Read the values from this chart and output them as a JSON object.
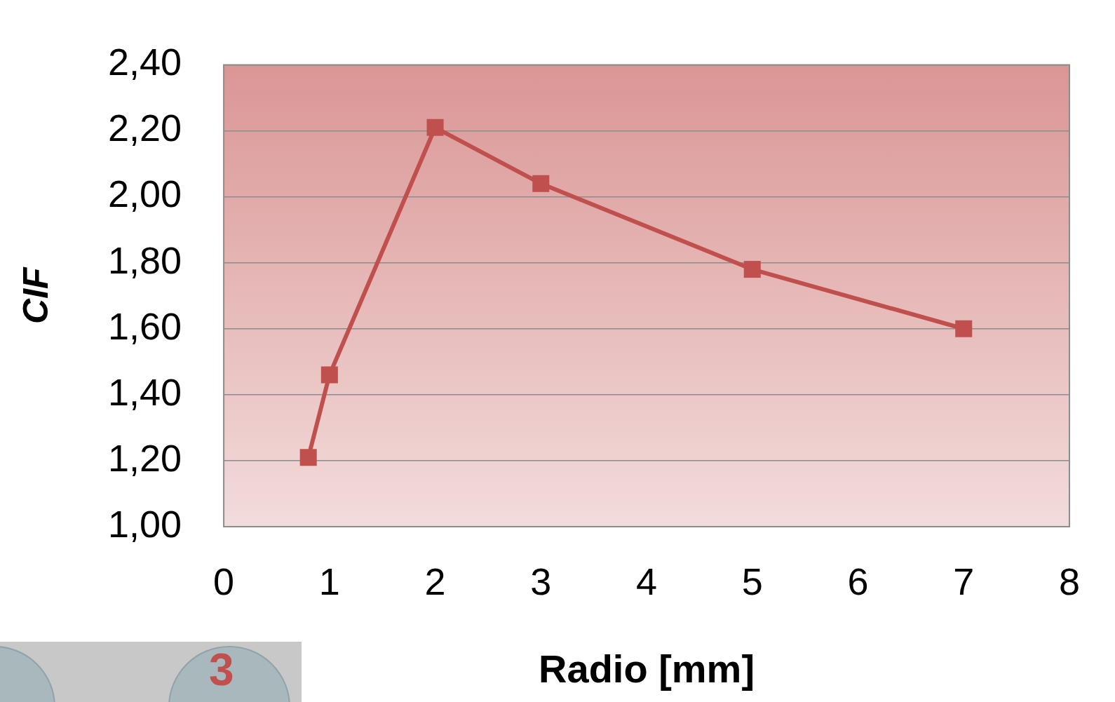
{
  "chart_data": {
    "type": "line",
    "xlabel": "Radio [mm]",
    "ylabel": "CIF",
    "x": [
      0.8,
      1,
      2,
      3,
      5,
      7
    ],
    "series": [
      {
        "color": "#c0504d",
        "values": [
          1.21,
          1.46,
          2.21,
          2.04,
          1.78,
          1.6
        ]
      }
    ],
    "xlim": [
      0,
      8
    ],
    "xticks": [
      0,
      1,
      2,
      3,
      4,
      5,
      6,
      7,
      8
    ],
    "ylim": [
      1,
      2.4
    ],
    "yticks": [
      {
        "value": 1,
        "label": "1,00"
      },
      {
        "value": 1.2,
        "label": "1,20"
      },
      {
        "value": 1.4,
        "label": "1,40"
      },
      {
        "value": 1.6,
        "label": "1,60"
      },
      {
        "value": 1.8,
        "label": "1,80"
      },
      {
        "value": 2,
        "label": "2,00"
      },
      {
        "value": 2.2,
        "label": "2,20"
      },
      {
        "value": 2.4,
        "label": "2,40"
      }
    ],
    "grid": "y",
    "legend": false,
    "marker": "square",
    "line_style": "solid",
    "annotations": [
      "3"
    ]
  }
}
